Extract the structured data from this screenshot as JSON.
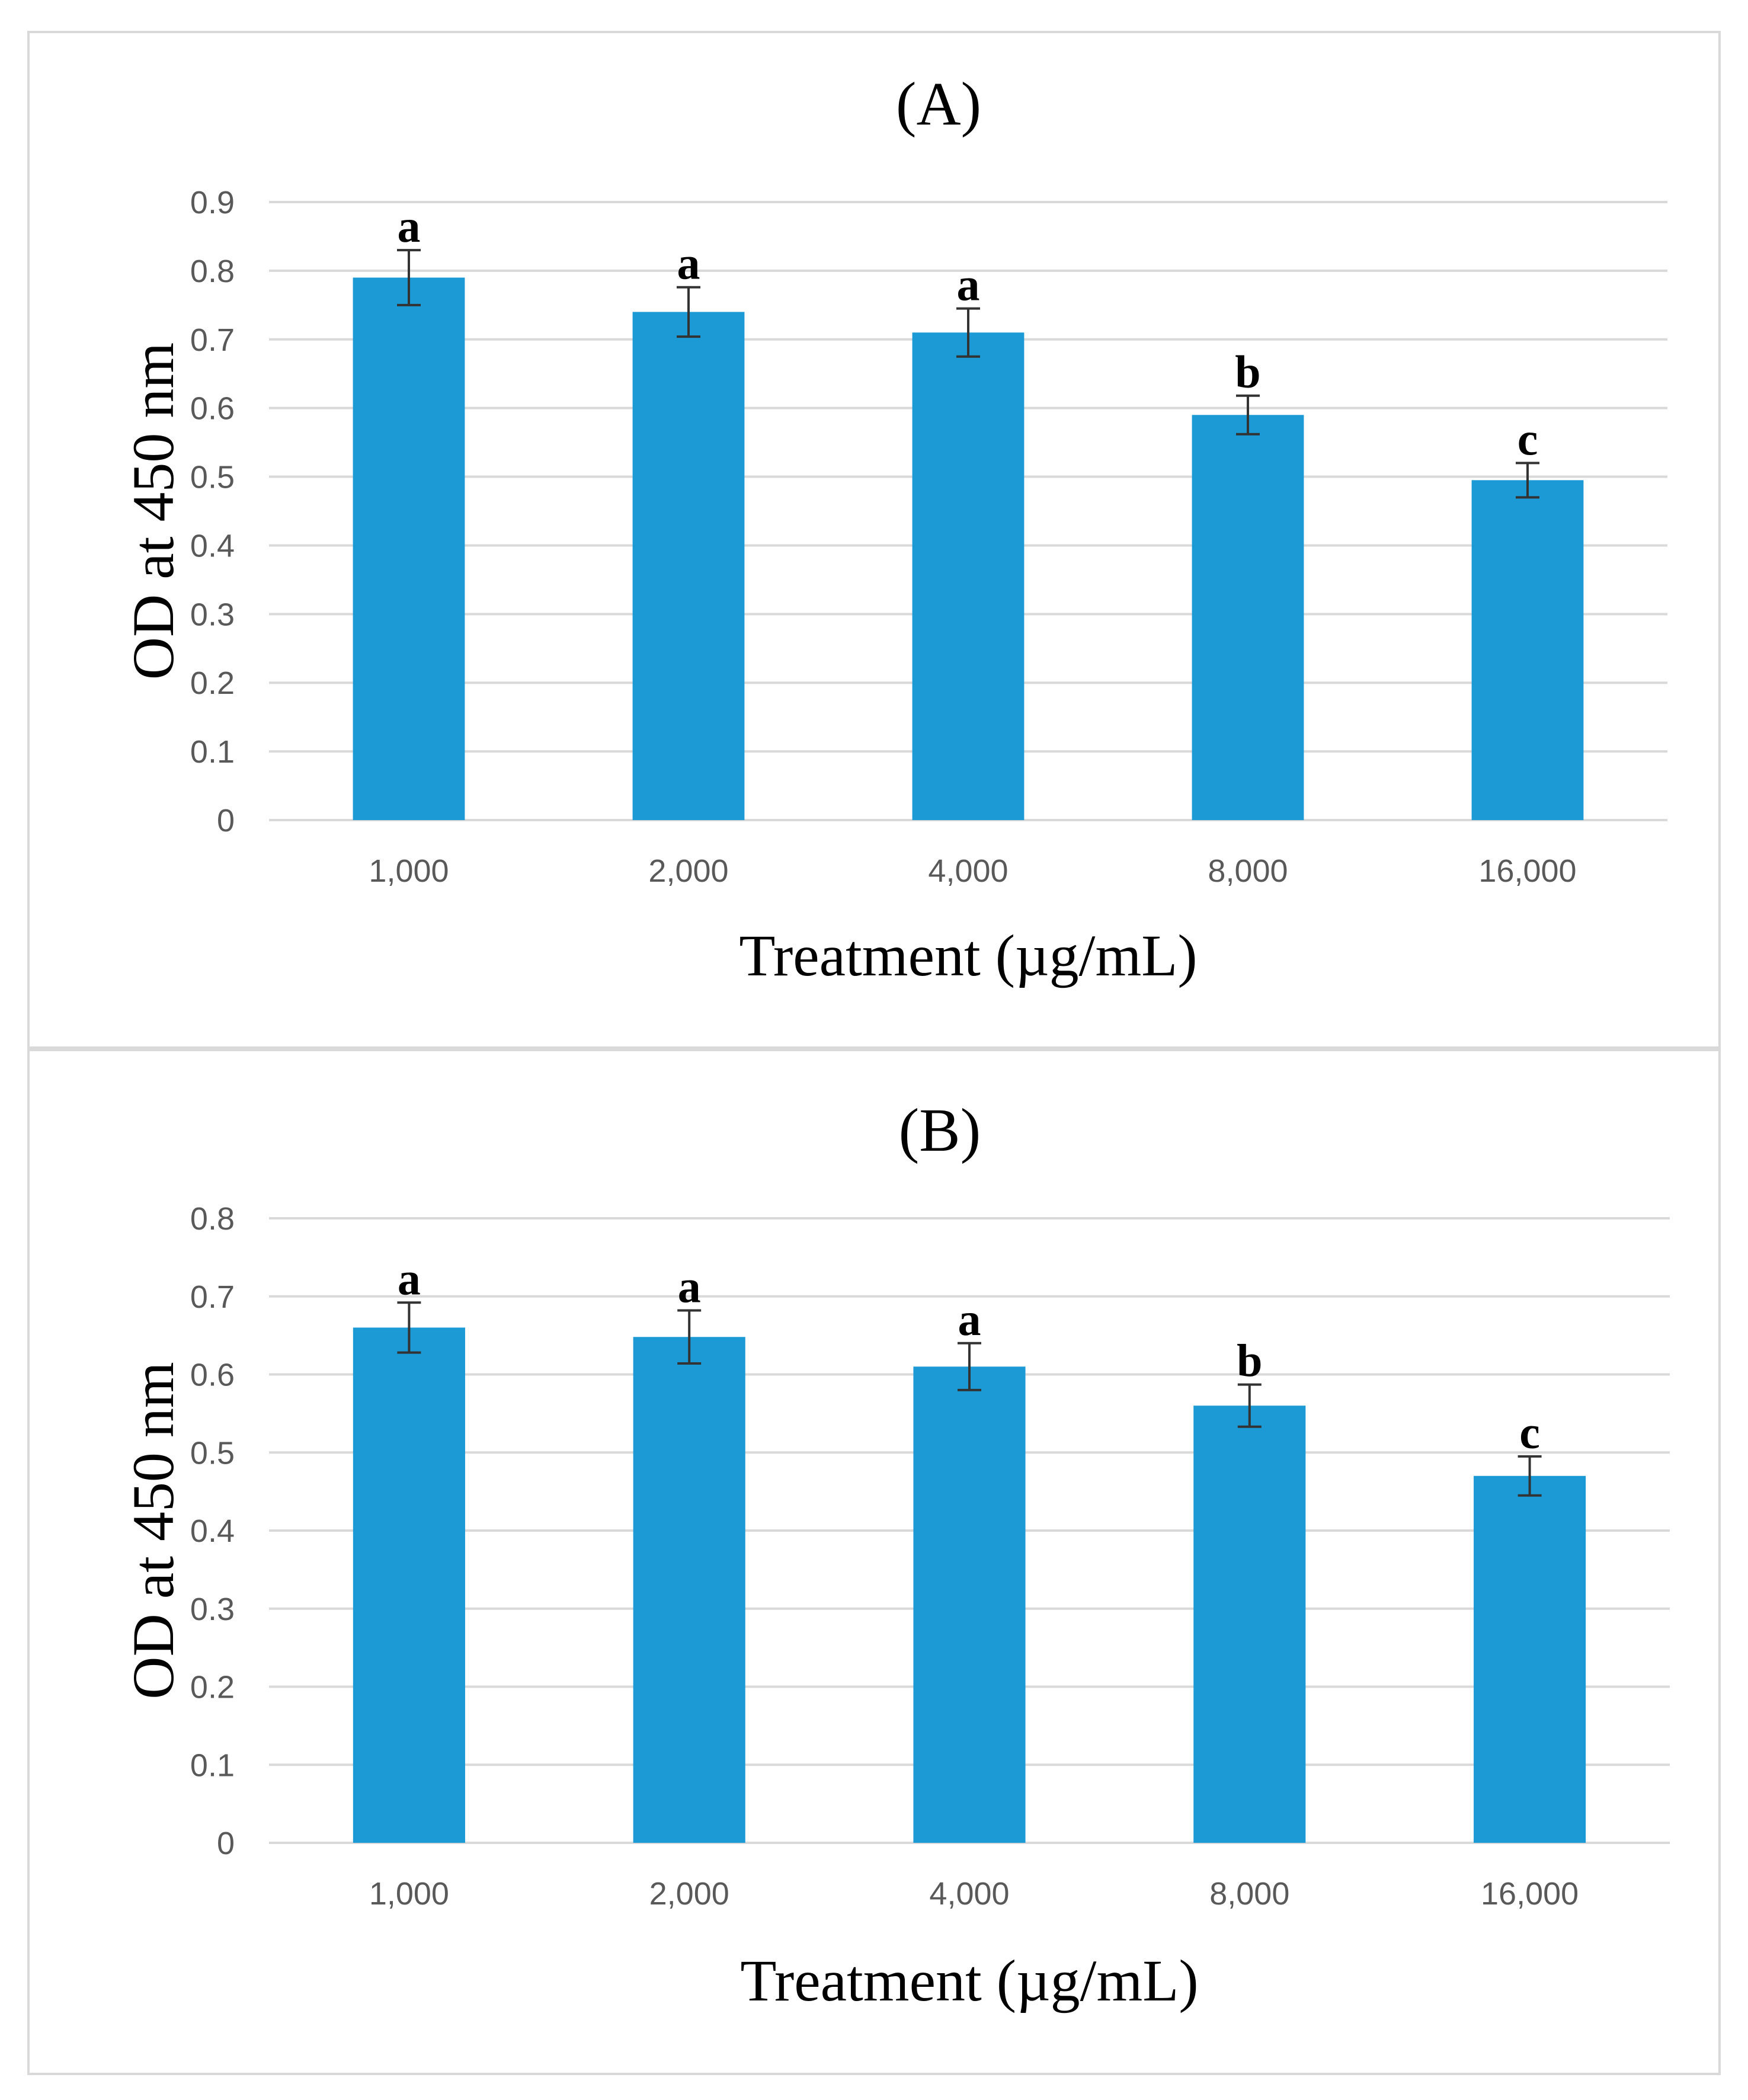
{
  "colors": {
    "bar": "#1b9ad6",
    "grid": "#d9d9d9",
    "tick_text": "#595959",
    "error_bar": "#333333"
  },
  "chart_data": [
    {
      "type": "bar",
      "title": "(A)",
      "xlabel": "Treatment (µg/mL)",
      "ylabel": "OD at 450 nm",
      "categories": [
        "1,000",
        "2,000",
        "4,000",
        "8,000",
        "16,000"
      ],
      "values": [
        0.79,
        0.74,
        0.71,
        0.59,
        0.495
      ],
      "errors": [
        0.04,
        0.036,
        0.035,
        0.028,
        0.025
      ],
      "significance": [
        "a",
        "a",
        "a",
        "b",
        "c"
      ],
      "ylim": [
        0,
        0.9
      ],
      "yticks": [
        "0",
        "0.1",
        "0.2",
        "0.3",
        "0.4",
        "0.5",
        "0.6",
        "0.7",
        "0.8",
        "0.9"
      ],
      "grid": true
    },
    {
      "type": "bar",
      "title": "(B)",
      "xlabel": "Treatment (µg/mL)",
      "ylabel": "OD at 450 nm",
      "categories": [
        "1,000",
        "2,000",
        "4,000",
        "8,000",
        "16,000"
      ],
      "values": [
        0.66,
        0.648,
        0.61,
        0.56,
        0.47
      ],
      "errors": [
        0.032,
        0.034,
        0.03,
        0.027,
        0.025
      ],
      "significance": [
        "a",
        "a",
        "a",
        "b",
        "c"
      ],
      "ylim": [
        0,
        0.8
      ],
      "yticks": [
        "0",
        "0.1",
        "0.2",
        "0.3",
        "0.4",
        "0.5",
        "0.6",
        "0.7",
        "0.8"
      ],
      "grid": true
    }
  ]
}
